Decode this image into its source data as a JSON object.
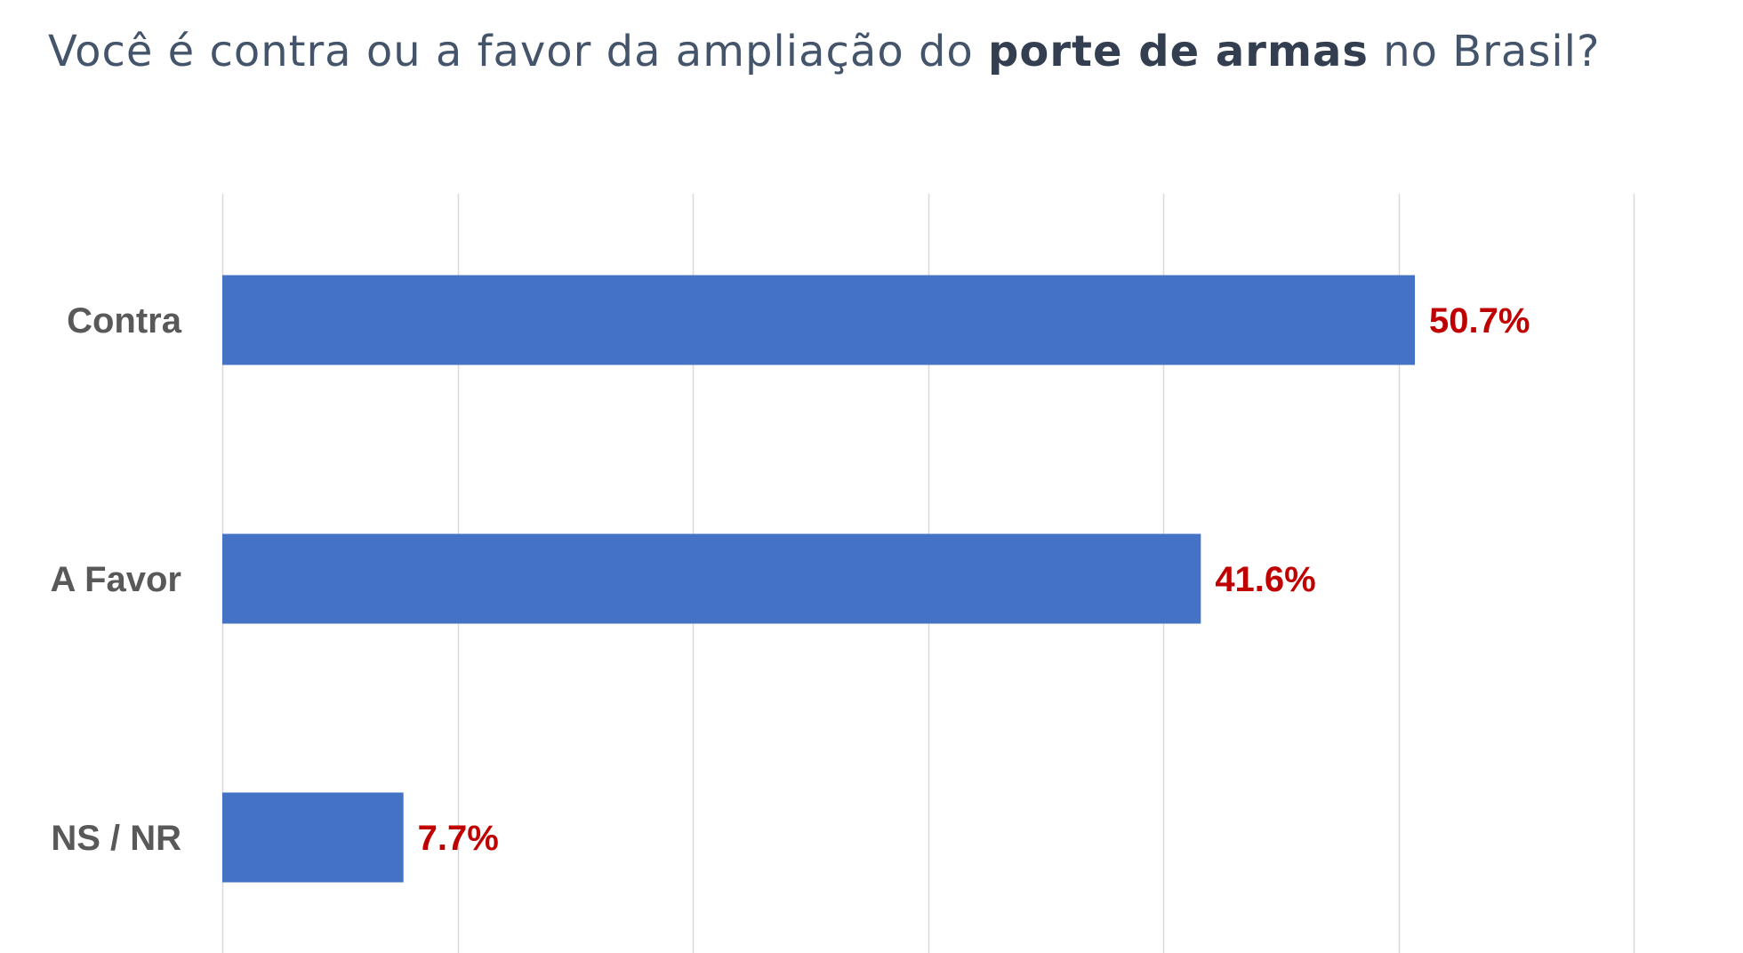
{
  "title": {
    "before": "Você é contra ou a favor da ampliação do ",
    "bold": "porte de armas",
    "after": " no Brasil?"
  },
  "colors": {
    "bar": "#4472c4",
    "value_label": "#c00000",
    "category_label": "#595959",
    "gridline": "#d9d9d9",
    "title": "#44546a"
  },
  "chart_data": {
    "type": "bar",
    "orientation": "horizontal",
    "categories": [
      "Contra",
      "A Favor",
      "NS / NR"
    ],
    "values": [
      50.7,
      41.6,
      7.7
    ],
    "value_labels": [
      "50.7%",
      "41.6%",
      "7.7%"
    ],
    "title": "Você é contra ou a favor da ampliação do porte de armas no Brasil?",
    "xlim": [
      0,
      60
    ],
    "grid": true,
    "legend": "none"
  }
}
